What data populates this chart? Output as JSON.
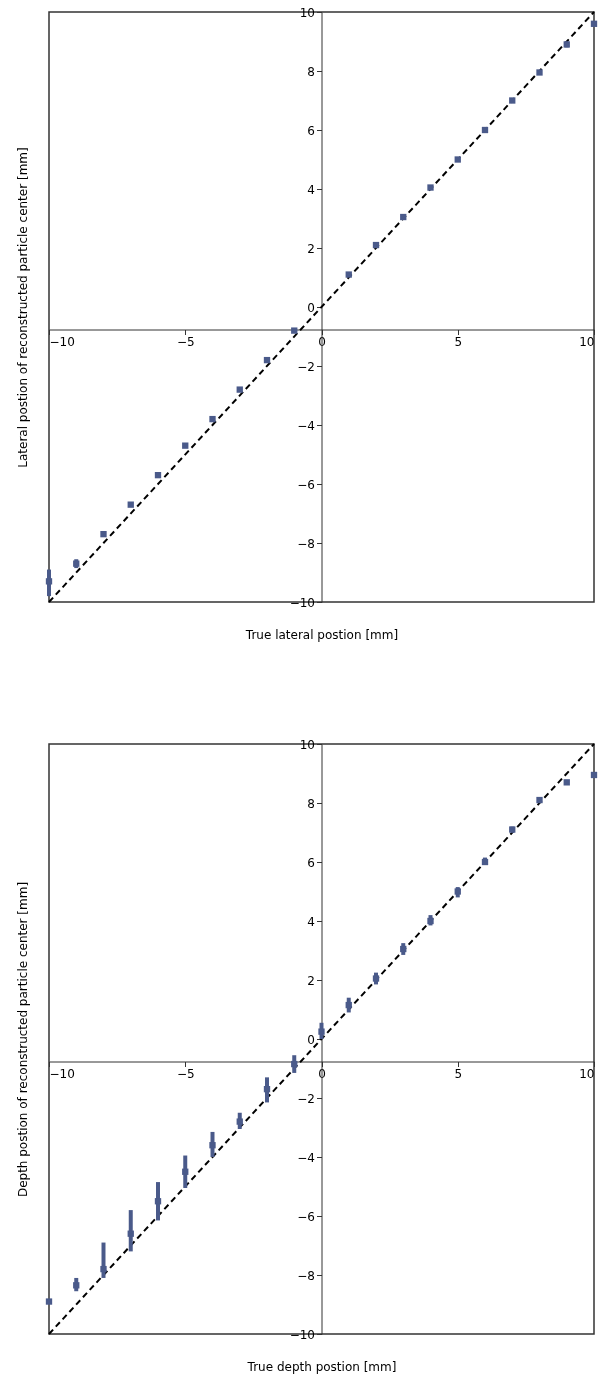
{
  "chart_data": [
    {
      "type": "scatter",
      "xlabel": "True lateral postion [mm]",
      "ylabel": "Lateral postion of reconstructed particle center [mm]",
      "xlim": [
        -10,
        10
      ],
      "ylim": [
        -10,
        10
      ],
      "xticks": [
        -10,
        -5,
        0,
        5,
        10
      ],
      "yticks": [
        -10,
        -8,
        -6,
        -4,
        -2,
        0,
        2,
        4,
        6,
        8,
        10
      ],
      "grid": false,
      "marker": "square",
      "series": [
        {
          "type": "scatter",
          "color": "#4a5a8a",
          "x": [
            -10,
            -9,
            -8,
            -7,
            -6,
            -5,
            -4,
            -3,
            -2,
            -1,
            1,
            2,
            3,
            4,
            5,
            6,
            7,
            8,
            9,
            10
          ],
          "values": [
            -9.3,
            -8.7,
            -7.7,
            -6.7,
            -5.7,
            -4.7,
            -3.8,
            -2.8,
            -1.8,
            -0.8,
            1.1,
            2.1,
            3.05,
            4.05,
            5.0,
            6.0,
            7.0,
            7.95,
            8.9,
            9.6
          ],
          "errors": [
            [
              -9.8,
              -8.9
            ],
            [
              -8.85,
              -8.55
            ],
            null,
            null,
            null,
            null,
            null,
            null,
            null,
            null,
            null,
            null,
            null,
            null,
            null,
            null,
            null,
            null,
            [
              8.8,
              9.0
            ],
            null
          ]
        },
        {
          "type": "line",
          "color": "#000000",
          "line_style": "dashed",
          "marker": "none",
          "x": [
            -10,
            10
          ],
          "values": [
            -10,
            10
          ]
        }
      ]
    },
    {
      "type": "scatter",
      "xlabel": "True depth postion [mm]",
      "ylabel": "Depth postion of reconstructed particle center [mm]",
      "xlim": [
        -10,
        10
      ],
      "ylim": [
        -10,
        10
      ],
      "xticks": [
        -10,
        -5,
        0,
        5,
        10
      ],
      "yticks": [
        -10,
        -8,
        -6,
        -4,
        -2,
        0,
        2,
        4,
        6,
        8,
        10
      ],
      "grid": false,
      "marker": "square",
      "series": [
        {
          "type": "scatter",
          "color": "#4a5a8a",
          "x": [
            -10,
            -9,
            -8,
            -7,
            -6,
            -5,
            -4,
            -3,
            -2,
            -1,
            0,
            1,
            2,
            3,
            4,
            5,
            6,
            7,
            8,
            9,
            10
          ],
          "values": [
            -8.9,
            -8.35,
            -7.8,
            -6.6,
            -5.5,
            -4.5,
            -3.6,
            -2.8,
            -1.7,
            -0.85,
            0.25,
            1.15,
            2.05,
            3.05,
            4.0,
            5.0,
            6.0,
            7.1,
            8.1,
            8.7,
            8.95
          ],
          "errors": [
            null,
            [
              -8.55,
              -8.1
            ],
            [
              -8.1,
              -6.9
            ],
            [
              -7.2,
              -5.8
            ],
            [
              -6.15,
              -4.85
            ],
            [
              -5.05,
              -3.95
            ],
            [
              -4.0,
              -3.15
            ],
            [
              -3.05,
              -2.5
            ],
            [
              -2.15,
              -1.3
            ],
            [
              -1.15,
              -0.55
            ],
            [
              0.0,
              0.55
            ],
            [
              0.9,
              1.4
            ],
            [
              1.85,
              2.25
            ],
            [
              2.85,
              3.25
            ],
            [
              3.85,
              4.2
            ],
            [
              4.8,
              5.15
            ],
            [
              5.9,
              6.15
            ],
            [
              7.0,
              7.2
            ],
            null,
            null,
            null
          ]
        },
        {
          "type": "line",
          "color": "#000000",
          "line_style": "dashed",
          "marker": "none",
          "x": [
            -10,
            10
          ],
          "values": [
            -10,
            10
          ]
        }
      ]
    }
  ]
}
